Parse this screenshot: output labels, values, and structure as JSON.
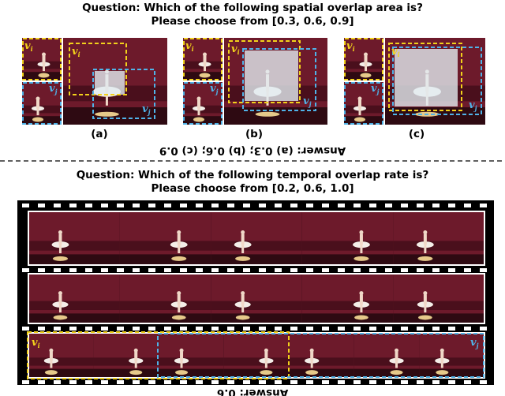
{
  "spatial": {
    "question": "Question: Which of the following spatial overlap area is?",
    "choices": "Please choose from [0.3, 0.6, 0.9]",
    "panels": [
      "(a)",
      "(b)",
      "(c)"
    ],
    "answer": "Answer: (a) 0.3; (b) 0.6; (c) 0.9"
  },
  "temporal": {
    "question": "Question: Which of the following temporal overlap rate is?",
    "choices": "Please choose from [0.2, 0.6, 1.0]",
    "answer": "Answer: 0.6"
  },
  "video_labels": {
    "first": {
      "letter": "v",
      "sub": "i"
    },
    "second": {
      "letter": "v",
      "sub": "j"
    }
  }
}
